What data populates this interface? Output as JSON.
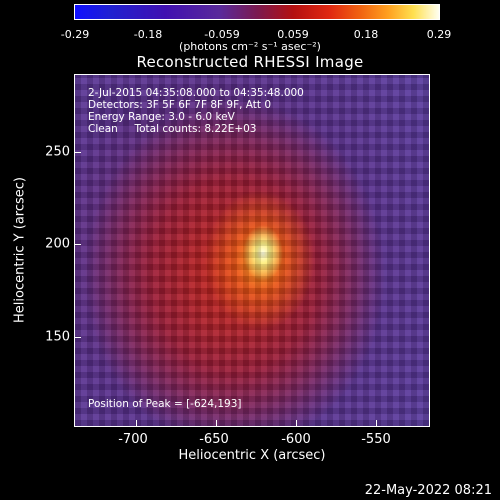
{
  "colorbar": {
    "ticks": [
      "-0.29",
      "-0.18",
      "-0.059",
      "0.059",
      "0.18",
      "0.29"
    ],
    "units": "(photons cm⁻² s⁻¹ asec⁻²)"
  },
  "title": "Reconstructed RHESSI Image",
  "info": {
    "time_range": "2-Jul-2015 04:35:08.000 to 04:35:48.000",
    "detectors": "Detectors: 3F 5F 6F 7F 8F 9F, Att 0",
    "energy": "Energy Range: 3.0 - 6.0 keV",
    "clean": "Clean     Total counts: 8.22E+03",
    "peak": "Position of Peak = [-624,193]"
  },
  "chart_data": {
    "type": "heatmap",
    "title": "Reconstructed RHESSI Image",
    "xlabel": "Heliocentric X (arcsec)",
    "ylabel": "Heliocentric Y (arcsec)",
    "xticks": [
      "-700",
      "-650",
      "-600",
      "-550"
    ],
    "yticks": [
      "250",
      "200",
      "150"
    ],
    "xlim": [
      -735,
      -531
    ],
    "ylim": [
      100,
      292
    ],
    "colorbar_range": [
      -0.29,
      0.29
    ],
    "peak_position": [
      -624,
      193
    ]
  },
  "footer": {
    "date": "22-May-2022 08:21"
  }
}
